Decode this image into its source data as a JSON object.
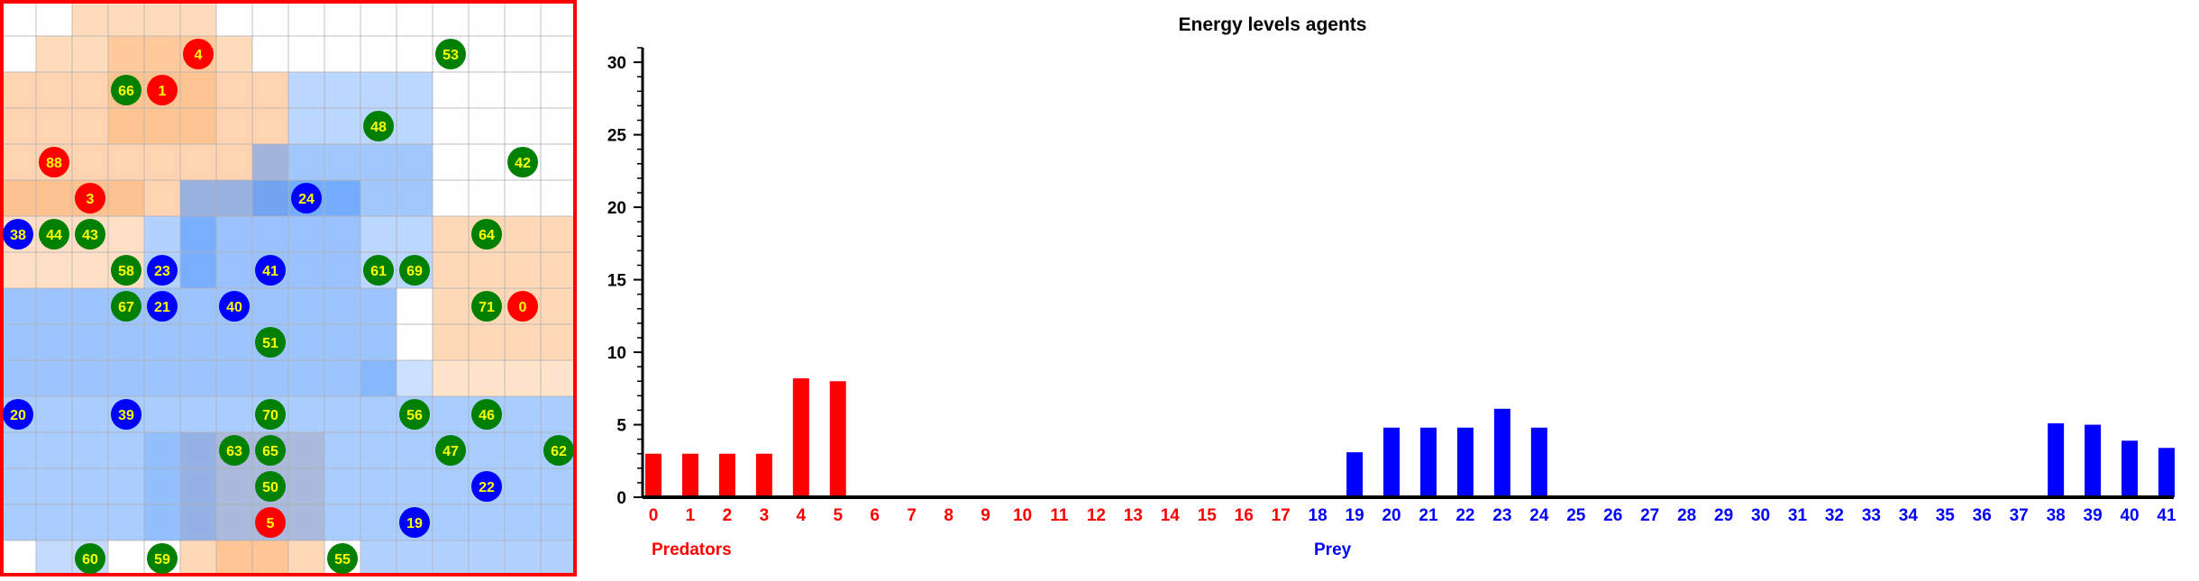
{
  "colors": {
    "predator": "#ff0000",
    "prey": "#0000ff",
    "plant": "#008000",
    "agent_label": "#ffff00",
    "grid_border": "#ff0000",
    "grid_line": "#b0b0b0",
    "water": "#5599ff",
    "heat": "#ff9944"
  },
  "grid": {
    "cols": 16,
    "rows": 16,
    "agents": [
      {
        "id": "4",
        "type": "predator",
        "col": 5,
        "row": 1
      },
      {
        "id": "53",
        "type": "plant",
        "col": 12,
        "row": 1
      },
      {
        "id": "66",
        "type": "plant",
        "col": 3,
        "row": 2
      },
      {
        "id": "1",
        "type": "predator",
        "col": 4,
        "row": 2
      },
      {
        "id": "48",
        "type": "plant",
        "col": 10,
        "row": 3
      },
      {
        "id": "88",
        "type": "predator",
        "col": 1,
        "row": 4
      },
      {
        "id": "42",
        "type": "plant",
        "col": 14,
        "row": 4
      },
      {
        "id": "3",
        "type": "predator",
        "col": 2,
        "row": 5
      },
      {
        "id": "24",
        "type": "prey",
        "col": 8,
        "row": 5
      },
      {
        "id": "38",
        "type": "prey",
        "col": 0,
        "row": 6
      },
      {
        "id": "44",
        "type": "plant",
        "col": 1,
        "row": 6
      },
      {
        "id": "43",
        "type": "plant",
        "col": 2,
        "row": 6
      },
      {
        "id": "64",
        "type": "plant",
        "col": 13,
        "row": 6
      },
      {
        "id": "58",
        "type": "plant",
        "col": 3,
        "row": 7
      },
      {
        "id": "23",
        "type": "prey",
        "col": 4,
        "row": 7
      },
      {
        "id": "41",
        "type": "prey",
        "col": 7,
        "row": 7
      },
      {
        "id": "61",
        "type": "plant",
        "col": 10,
        "row": 7
      },
      {
        "id": "69",
        "type": "plant",
        "col": 11,
        "row": 7
      },
      {
        "id": "67",
        "type": "plant",
        "col": 3,
        "row": 8
      },
      {
        "id": "21",
        "type": "prey",
        "col": 4,
        "row": 8
      },
      {
        "id": "40",
        "type": "prey",
        "col": 6,
        "row": 8
      },
      {
        "id": "71",
        "type": "plant",
        "col": 13,
        "row": 8
      },
      {
        "id": "0",
        "type": "predator",
        "col": 14,
        "row": 8
      },
      {
        "id": "51",
        "type": "plant",
        "col": 7,
        "row": 9
      },
      {
        "id": "20",
        "type": "prey",
        "col": 0,
        "row": 11
      },
      {
        "id": "39",
        "type": "prey",
        "col": 3,
        "row": 11
      },
      {
        "id": "70",
        "type": "plant",
        "col": 7,
        "row": 11
      },
      {
        "id": "56",
        "type": "plant",
        "col": 11,
        "row": 11
      },
      {
        "id": "46",
        "type": "plant",
        "col": 13,
        "row": 11
      },
      {
        "id": "63",
        "type": "plant",
        "col": 6,
        "row": 12
      },
      {
        "id": "65",
        "type": "plant",
        "col": 7,
        "row": 12
      },
      {
        "id": "47",
        "type": "plant",
        "col": 12,
        "row": 12
      },
      {
        "id": "62",
        "type": "plant",
        "col": 15,
        "row": 12
      },
      {
        "id": "50",
        "type": "plant",
        "col": 7,
        "row": 13
      },
      {
        "id": "22",
        "type": "prey",
        "col": 13,
        "row": 13
      },
      {
        "id": "5",
        "type": "predator",
        "col": 7,
        "row": 14
      },
      {
        "id": "19",
        "type": "prey",
        "col": 11,
        "row": 14
      },
      {
        "id": "60",
        "type": "plant",
        "col": 2,
        "row": 15
      },
      {
        "id": "59",
        "type": "plant",
        "col": 4,
        "row": 15
      },
      {
        "id": "55",
        "type": "plant",
        "col": 9,
        "row": 15
      }
    ]
  },
  "chart_data": {
    "type": "bar",
    "title": "Energy levels agents",
    "xlabel": "",
    "ylabel": "",
    "ylim": [
      0,
      31
    ],
    "yticks": [
      0,
      5,
      10,
      15,
      20,
      25,
      30
    ],
    "grid": false,
    "categories": [
      "0",
      "1",
      "2",
      "3",
      "4",
      "5",
      "6",
      "7",
      "8",
      "9",
      "10",
      "11",
      "12",
      "13",
      "14",
      "15",
      "16",
      "17",
      "18",
      "19",
      "20",
      "21",
      "22",
      "23",
      "24",
      "25",
      "26",
      "27",
      "28",
      "29",
      "30",
      "31",
      "32",
      "33",
      "34",
      "35",
      "36",
      "37",
      "38",
      "39",
      "40",
      "41"
    ],
    "values": [
      3,
      3,
      3,
      3,
      8.2,
      8,
      0,
      0,
      0,
      0,
      0,
      0,
      0,
      0,
      0,
      0,
      0,
      0,
      0,
      3.1,
      4.8,
      4.8,
      4.8,
      6.1,
      4.8,
      0,
      0,
      0,
      0,
      0,
      0,
      0,
      0,
      0,
      0,
      0,
      0,
      0,
      5.1,
      5,
      3.9,
      3.4
    ],
    "groups": [
      {
        "name": "Predators",
        "from": 0,
        "to": 17,
        "color": "#ff0000"
      },
      {
        "name": "Prey",
        "from": 18,
        "to": 41,
        "color": "#0000ff"
      }
    ]
  }
}
